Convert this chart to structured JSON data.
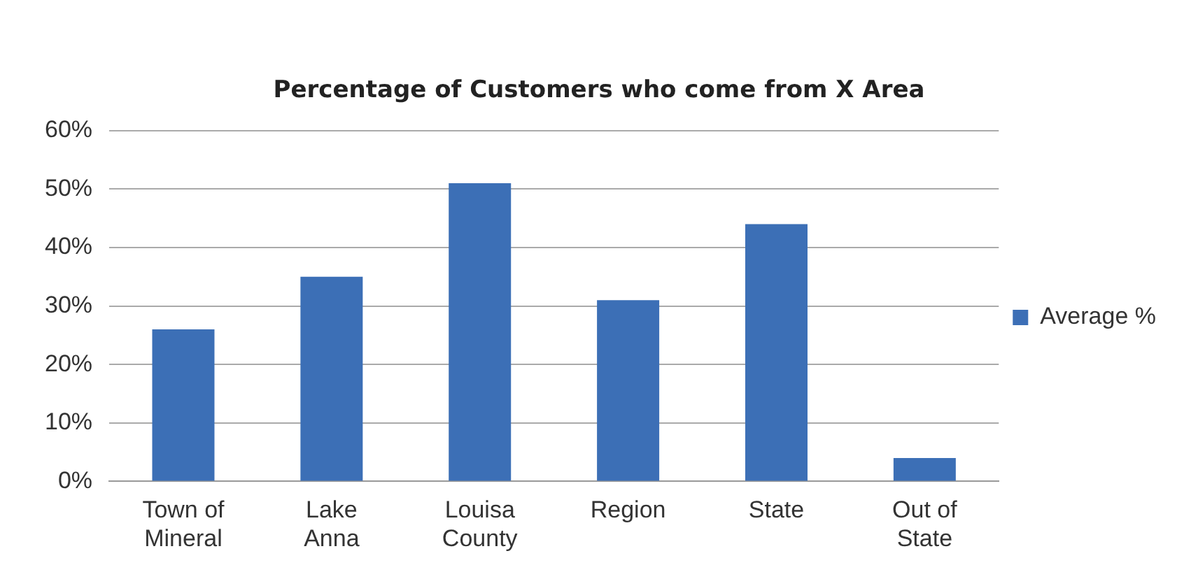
{
  "chart_data": {
    "type": "bar",
    "title": "Percentage of Customers who come from X Area",
    "categories": [
      "Town of Mineral",
      "Lake Anna",
      "Louisa County",
      "Region",
      "State",
      "Out of State"
    ],
    "series": [
      {
        "name": "Average %",
        "color": "#3c6fb6",
        "values": [
          26,
          35,
          51,
          31,
          44,
          4
        ]
      }
    ],
    "ylim": [
      0,
      60
    ],
    "yticks": [
      {
        "value": 0,
        "label": "0%"
      },
      {
        "value": 10,
        "label": "10%"
      },
      {
        "value": 20,
        "label": "20%"
      },
      {
        "value": 30,
        "label": "30%"
      },
      {
        "value": 40,
        "label": "40%"
      },
      {
        "value": 50,
        "label": "50%"
      },
      {
        "value": 60,
        "label": "60%"
      }
    ],
    "grid": "y",
    "legend": "right"
  }
}
